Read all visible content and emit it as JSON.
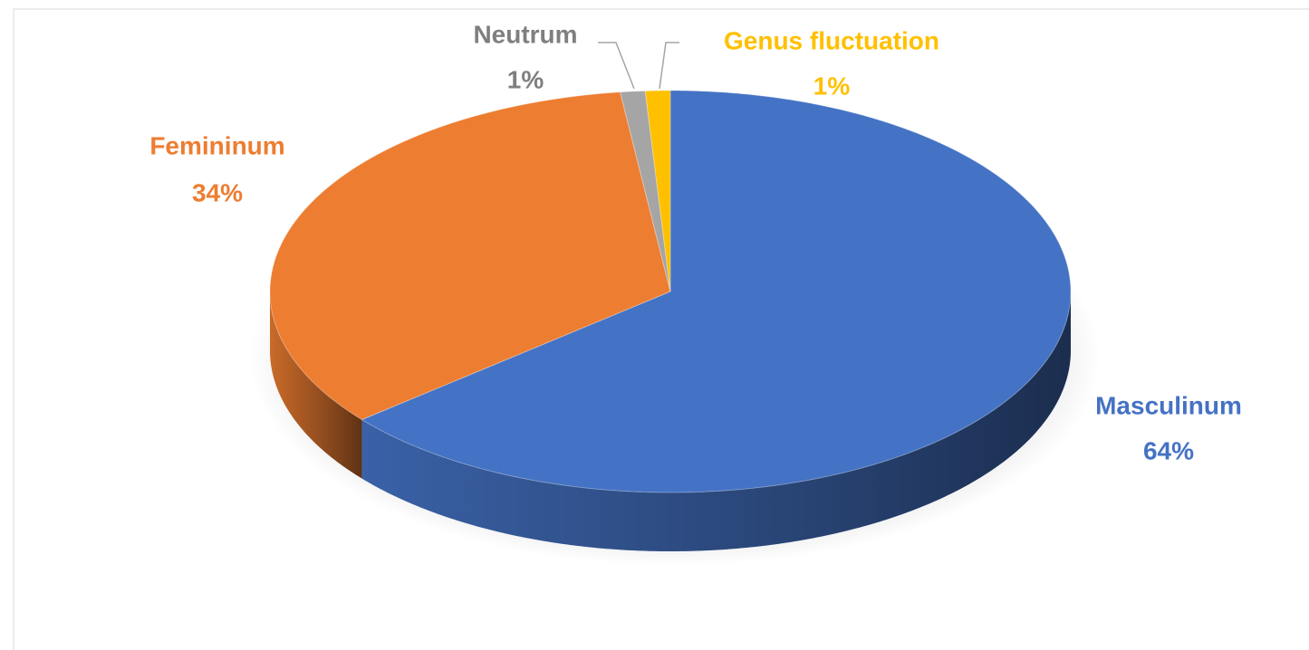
{
  "chart_data": {
    "type": "pie",
    "categories": [
      "Masculinum",
      "Femininum",
      "Neutrum",
      "Genus fluctuation"
    ],
    "values": [
      64,
      34,
      1,
      1
    ],
    "value_labels": [
      "64%",
      "34%",
      "1%",
      "1%"
    ],
    "colors": [
      "#4472c4",
      "#ed7d31",
      "#a5a5a5",
      "#ffc000"
    ],
    "label_colors": [
      "#4472c4",
      "#ed7d31",
      "#7f7f7f",
      "#ffc000"
    ]
  }
}
